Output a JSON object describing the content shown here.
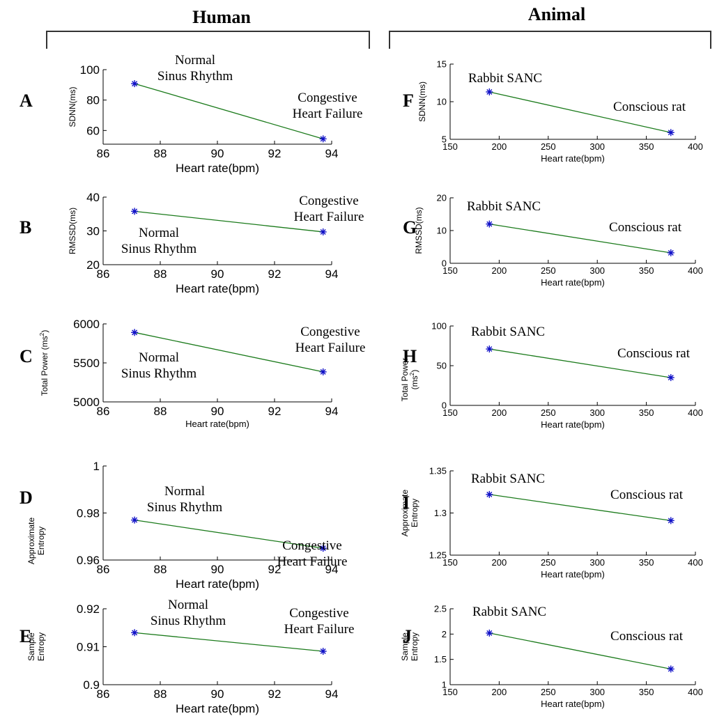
{
  "headings": {
    "left": "Human",
    "right": "Animal"
  },
  "colors": {
    "line": "#1a7a1a",
    "marker": "#1010c8",
    "axis": "#000000"
  },
  "chart_data": [
    {
      "panel": "A",
      "type": "line",
      "x": [
        87.1,
        93.7
      ],
      "y": [
        90.8,
        54.5
      ],
      "xlim": [
        86,
        94
      ],
      "ylim": [
        51,
        100
      ],
      "xticks": [
        86,
        88,
        90,
        92,
        94
      ],
      "yticks": [
        60,
        80,
        100
      ],
      "xlabel": "Heart rate(bpm)",
      "ylabel": [
        "SDNN(ms)"
      ],
      "annotations": [
        {
          "lines": [
            "Normal",
            "Sinus Rhythm"
          ]
        },
        {
          "lines": [
            "Congestive",
            "Heart Failure"
          ]
        }
      ]
    },
    {
      "panel": "B",
      "type": "line",
      "x": [
        87.1,
        93.7
      ],
      "y": [
        35.8,
        29.7
      ],
      "xlim": [
        86,
        94
      ],
      "ylim": [
        20,
        40
      ],
      "xticks": [
        86,
        88,
        90,
        92,
        94
      ],
      "yticks": [
        20,
        30,
        40
      ],
      "xlabel": "Heart rate(bpm)",
      "ylabel": [
        "RMSSD(ms)"
      ],
      "annotations": [
        {
          "lines": [
            "Normal",
            "Sinus Rhythm"
          ]
        },
        {
          "lines": [
            "Congestive",
            "Heart Failure"
          ]
        }
      ]
    },
    {
      "panel": "C",
      "type": "line",
      "x": [
        87.1,
        93.7
      ],
      "y": [
        5890,
        5385
      ],
      "xlim": [
        86,
        94
      ],
      "ylim": [
        5000,
        6000
      ],
      "xticks": [
        86,
        88,
        90,
        92,
        94
      ],
      "yticks": [
        5000,
        5500,
        6000
      ],
      "xlabel": "Heart rate(bpm)",
      "ylabel": [
        "Total Power  (ms2)"
      ],
      "annotations": [
        {
          "lines": [
            "Normal",
            "Sinus Rhythm"
          ]
        },
        {
          "lines": [
            "Congestive",
            "Heart Failure"
          ]
        }
      ]
    },
    {
      "panel": "D",
      "type": "line",
      "x": [
        87.1,
        93.7
      ],
      "y": [
        0.977,
        0.965
      ],
      "xlim": [
        86,
        94
      ],
      "ylim": [
        0.96,
        1.0
      ],
      "xticks": [
        86,
        88,
        90,
        92,
        94
      ],
      "yticks": [
        0.96,
        0.98,
        1
      ],
      "xlabel": "Heart rate(bpm)",
      "ylabel": [
        "Approximate",
        "Entropy"
      ],
      "annotations": [
        {
          "lines": [
            "Normal",
            "Sinus Rhythm"
          ]
        },
        {
          "lines": [
            "Congestive",
            "Heart Failure"
          ]
        }
      ]
    },
    {
      "panel": "E",
      "type": "line",
      "x": [
        87.1,
        93.7
      ],
      "y": [
        0.9137,
        0.9088
      ],
      "xlim": [
        86,
        94
      ],
      "ylim": [
        0.9,
        0.92
      ],
      "xticks": [
        86,
        88,
        90,
        92,
        94
      ],
      "yticks": [
        0.9,
        0.91,
        0.92
      ],
      "xlabel": "Heart rate(bpm)",
      "ylabel": [
        "Sample",
        "Entropy"
      ],
      "annotations": [
        {
          "lines": [
            "Normal",
            "Sinus Rhythm"
          ]
        },
        {
          "lines": [
            "Congestive",
            "Heart Failure"
          ]
        }
      ]
    },
    {
      "panel": "F",
      "type": "line",
      "x": [
        190,
        375
      ],
      "y": [
        11.3,
        5.9
      ],
      "xlim": [
        150,
        400
      ],
      "ylim": [
        5,
        15
      ],
      "xticks": [
        150,
        200,
        250,
        300,
        350,
        400
      ],
      "yticks": [
        5,
        10,
        15
      ],
      "xlabel": "Heart rate(bpm)",
      "ylabel": [
        "SDNN(ms)"
      ],
      "annotations": [
        {
          "lines": [
            "Rabbit SANC"
          ]
        },
        {
          "lines": [
            "Conscious rat"
          ]
        }
      ]
    },
    {
      "panel": "G",
      "type": "line",
      "x": [
        190,
        375
      ],
      "y": [
        12.0,
        3.2
      ],
      "xlim": [
        150,
        400
      ],
      "ylim": [
        0,
        20
      ],
      "xticks": [
        150,
        200,
        250,
        300,
        350,
        400
      ],
      "yticks": [
        0,
        10,
        20
      ],
      "xlabel": "Heart rate(bpm)",
      "ylabel": [
        "RMSSD(ms)"
      ],
      "annotations": [
        {
          "lines": [
            "Rabbit SANC"
          ]
        },
        {
          "lines": [
            "Conscious rat"
          ]
        }
      ]
    },
    {
      "panel": "H",
      "type": "line",
      "x": [
        190,
        375
      ],
      "y": [
        71,
        35
      ],
      "xlim": [
        150,
        400
      ],
      "ylim": [
        0,
        100
      ],
      "xticks": [
        150,
        200,
        250,
        300,
        350,
        400
      ],
      "yticks": [
        0,
        50,
        100
      ],
      "xlabel": "Heart rate(bpm)",
      "ylabel": [
        "Total Power",
        "(ms2)"
      ],
      "annotations": [
        {
          "lines": [
            "Rabbit SANC"
          ]
        },
        {
          "lines": [
            "Conscious rat"
          ]
        }
      ]
    },
    {
      "panel": "I",
      "type": "line",
      "x": [
        190,
        375
      ],
      "y": [
        1.322,
        1.291
      ],
      "xlim": [
        150,
        400
      ],
      "ylim": [
        1.25,
        1.35
      ],
      "xticks": [
        150,
        200,
        250,
        300,
        350,
        400
      ],
      "yticks": [
        1.25,
        1.3,
        1.35
      ],
      "xlabel": "Heart rate(bpm)",
      "ylabel": [
        "Approximate",
        "Entropy"
      ],
      "annotations": [
        {
          "lines": [
            "Rabbit SANC"
          ]
        },
        {
          "lines": [
            "Conscious rat"
          ]
        }
      ]
    },
    {
      "panel": "J",
      "type": "line",
      "x": [
        190,
        375
      ],
      "y": [
        2.02,
        1.31
      ],
      "xlim": [
        150,
        400
      ],
      "ylim": [
        1,
        2.5
      ],
      "xticks": [
        150,
        200,
        250,
        300,
        350,
        400
      ],
      "yticks": [
        1,
        1.5,
        2,
        2.5
      ],
      "xlabel": "Heart rate(bpm)",
      "ylabel": [
        "Sample",
        "Entropy"
      ],
      "annotations": [
        {
          "lines": [
            "Rabbit SANC"
          ]
        },
        {
          "lines": [
            "Conscious rat"
          ]
        }
      ]
    }
  ]
}
